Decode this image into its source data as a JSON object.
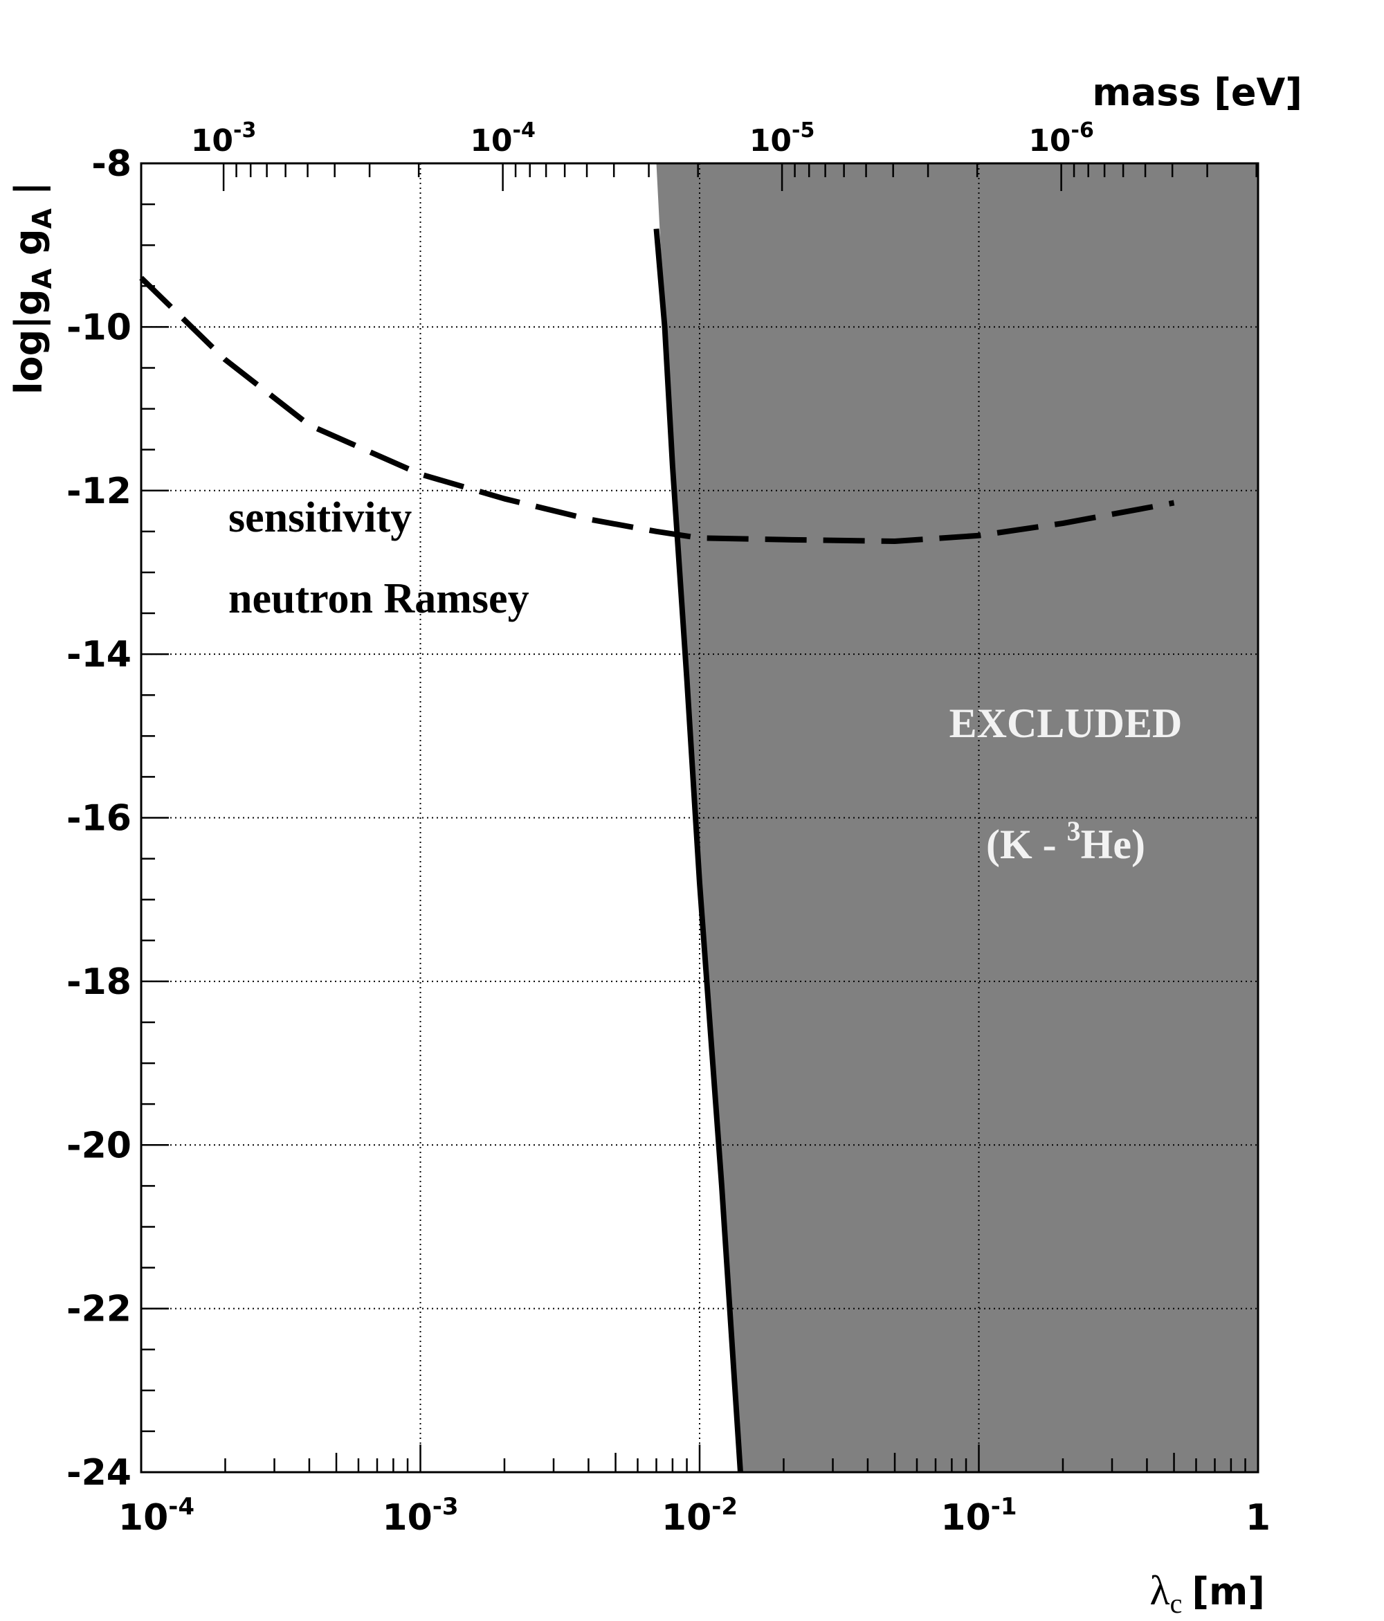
{
  "chart_data": {
    "type": "line",
    "x_scale": "log",
    "xlabel_symbol": "λ",
    "xlabel_subscript": "c",
    "xlabel_unit": "[m]",
    "xlim": [
      0.0001,
      1
    ],
    "x_ticks": [
      {
        "value": 0.0001,
        "base": "10",
        "exp": "-4"
      },
      {
        "value": 0.001,
        "base": "10",
        "exp": "-3"
      },
      {
        "value": 0.01,
        "base": "10",
        "exp": "-2"
      },
      {
        "value": 0.1,
        "base": "10",
        "exp": "-1"
      },
      {
        "value": 1,
        "base": "1",
        "exp": ""
      }
    ],
    "ylabel_parts": {
      "pre": "log|g",
      "sub1": "A",
      "mid": " g",
      "sub2": "A",
      "post": " |"
    },
    "ylim": [
      -24,
      -8
    ],
    "y_ticks": [
      "-8",
      "-10",
      "-12",
      "-14",
      "-16",
      "-18",
      "-20",
      "-22",
      "-24"
    ],
    "top_axis": {
      "label": "mass [eV]",
      "ticks": [
        {
          "mass": 0.001,
          "base": "10",
          "exp": "-3"
        },
        {
          "mass": 0.0001,
          "base": "10",
          "exp": "-4"
        },
        {
          "mass": 1e-05,
          "base": "10",
          "exp": "-5"
        },
        {
          "mass": 1e-06,
          "base": "10",
          "exp": "-6"
        }
      ]
    },
    "grid": true,
    "series": [
      {
        "style": "dashed",
        "x": [
          0.0001,
          0.0002,
          0.0004,
          0.001,
          0.002,
          0.004,
          0.007,
          0.01,
          0.02,
          0.05,
          0.1,
          0.2,
          0.5
        ],
        "y": [
          -9.4,
          -10.4,
          -11.2,
          -11.8,
          -12.1,
          -12.35,
          -12.5,
          -12.58,
          -12.6,
          -12.62,
          -12.55,
          -12.4,
          -12.15
        ]
      },
      {
        "style": "solid",
        "x": [
          0.007,
          0.0075,
          0.008,
          0.009,
          0.01,
          0.012,
          0.014
        ],
        "y": [
          -8.8,
          -10,
          -11.7,
          -14.3,
          -16.8,
          -20.5,
          -24
        ]
      }
    ],
    "excluded_region": {
      "boundary_x": [
        0.007,
        0.0075,
        0.008,
        0.009,
        0.01,
        0.012,
        0.014
      ],
      "boundary_y": [
        -8,
        -10,
        -11.7,
        -14.3,
        -16.8,
        -20.5,
        -24
      ],
      "color": "#808080"
    },
    "annotations": {
      "sensitivity_line1": "sensitivity",
      "sensitivity_line2": "neutron Ramsey",
      "excluded_label": "EXCLUDED",
      "excluded_sub_pre": "(K - ",
      "excluded_sub_sup": "3",
      "excluded_sub_post": "He)"
    }
  }
}
